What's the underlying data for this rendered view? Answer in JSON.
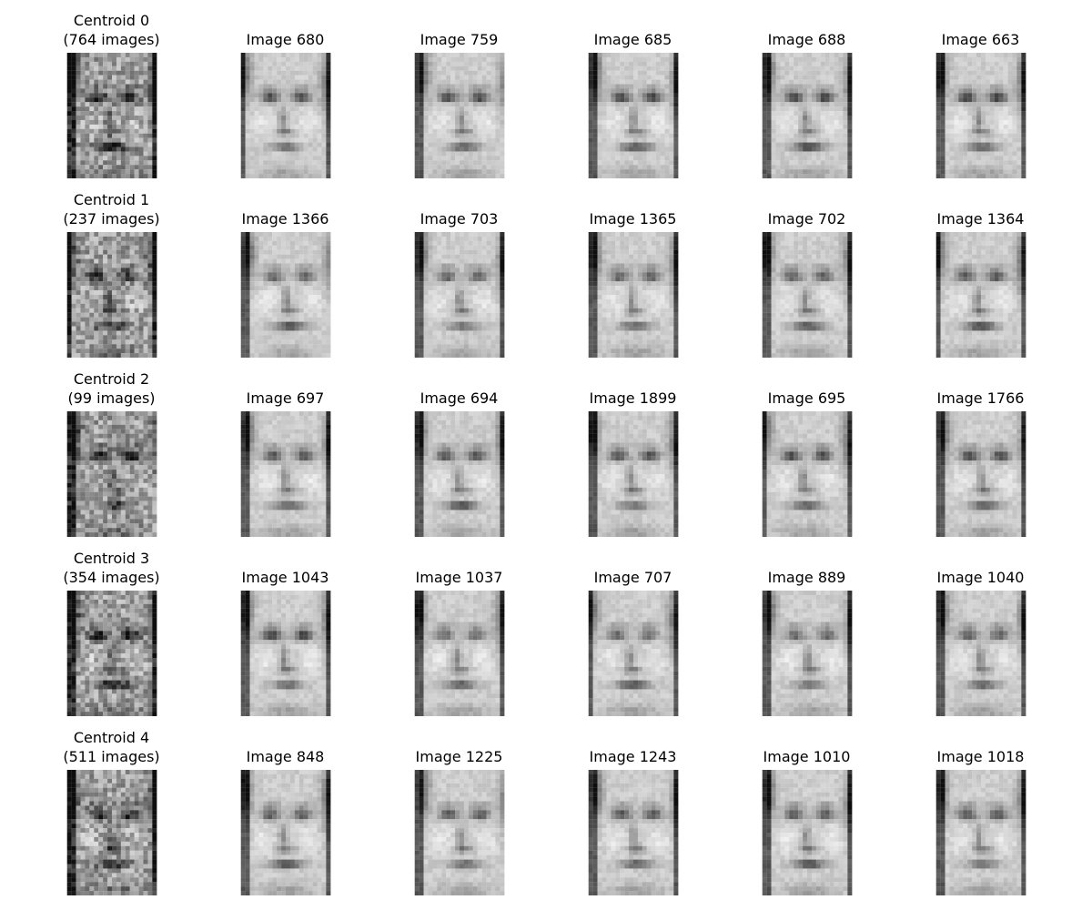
{
  "figure": {
    "rows": [
      {
        "centroid": {
          "line1": "Centroid 0",
          "line2": "(764 images)"
        },
        "images": [
          {
            "label": "Image 680"
          },
          {
            "label": "Image 759"
          },
          {
            "label": "Image 685"
          },
          {
            "label": "Image 688"
          },
          {
            "label": "Image 663"
          }
        ]
      },
      {
        "centroid": {
          "line1": "Centroid 1",
          "line2": "(237 images)"
        },
        "images": [
          {
            "label": "Image 1366"
          },
          {
            "label": "Image 703"
          },
          {
            "label": "Image 1365"
          },
          {
            "label": "Image 702"
          },
          {
            "label": "Image 1364"
          }
        ]
      },
      {
        "centroid": {
          "line1": "Centroid 2",
          "line2": "(99 images)"
        },
        "images": [
          {
            "label": "Image 697"
          },
          {
            "label": "Image 694"
          },
          {
            "label": "Image 1899"
          },
          {
            "label": "Image 695"
          },
          {
            "label": "Image 1766"
          }
        ]
      },
      {
        "centroid": {
          "line1": "Centroid 3",
          "line2": "(354 images)"
        },
        "images": [
          {
            "label": "Image 1043"
          },
          {
            "label": "Image 1037"
          },
          {
            "label": "Image 707"
          },
          {
            "label": "Image 889"
          },
          {
            "label": "Image 1040"
          }
        ]
      },
      {
        "centroid": {
          "line1": "Centroid 4",
          "line2": "(511 images)"
        },
        "images": [
          {
            "label": "Image 848"
          },
          {
            "label": "Image 1225"
          },
          {
            "label": "Image 1243"
          },
          {
            "label": "Image 1010"
          },
          {
            "label": "Image 1018"
          }
        ]
      }
    ]
  }
}
